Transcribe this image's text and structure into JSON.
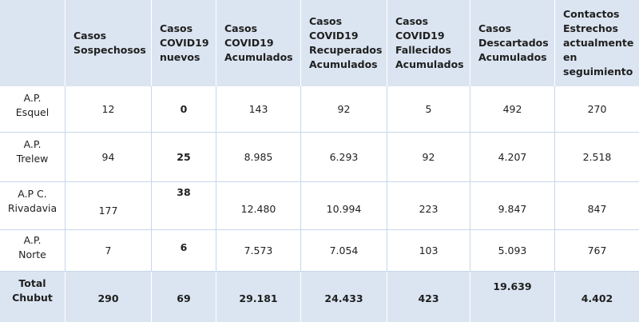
{
  "columns": [
    "",
    "Casos Sospechosos",
    "Casos COVID19 nuevos",
    "Casos COVID19 Acumulados",
    "Casos COVID19 Recuperados Acumulados",
    "Casos COVID19 Fallecidos Acumulados",
    "Casos Descartados Acumulados",
    "Contactos Estrechos actualmente en seguimiento"
  ],
  "header_lines": [
    [],
    [
      "Casos",
      "Sospechosos"
    ],
    [
      "Casos",
      "COVID19",
      "nuevos"
    ],
    [
      "Casos",
      "COVID19",
      "Acumulados"
    ],
    [
      "Casos",
      "COVID19",
      "Recuperados",
      "Acumulados"
    ],
    [
      "Casos",
      "COVID19",
      "Fallecidos",
      "Acumulados"
    ],
    [
      "Casos",
      "Descartados",
      "Acumulados"
    ],
    [
      "Contactos",
      "Estrechos",
      "actualmente",
      "en",
      "seguimiento"
    ]
  ],
  "rows": [
    {
      "label": [
        "A.P.",
        "Esquel"
      ],
      "values": [
        "12",
        "0",
        "143",
        "92",
        "5",
        "492",
        "270"
      ]
    },
    {
      "label": [
        "A.P.",
        "Trelew"
      ],
      "values": [
        "94",
        "25",
        "8.985",
        "6.293",
        "92",
        "4.207",
        "2.518"
      ]
    },
    {
      "label": [
        "A.P C.",
        "Rivadavia"
      ],
      "values": [
        "177",
        "38",
        "12.480",
        "10.994",
        "223",
        "9.847",
        "847"
      ]
    },
    {
      "label": [
        "A.P.",
        "Norte"
      ],
      "values": [
        "7",
        "6",
        "7.573",
        "7.054",
        "103",
        "5.093",
        "767"
      ]
    }
  ],
  "total": {
    "label": [
      "Total",
      "Chubut"
    ],
    "values": [
      "290",
      "69",
      "29.181",
      "24.433",
      "423",
      "19.639",
      "4.402"
    ]
  }
}
